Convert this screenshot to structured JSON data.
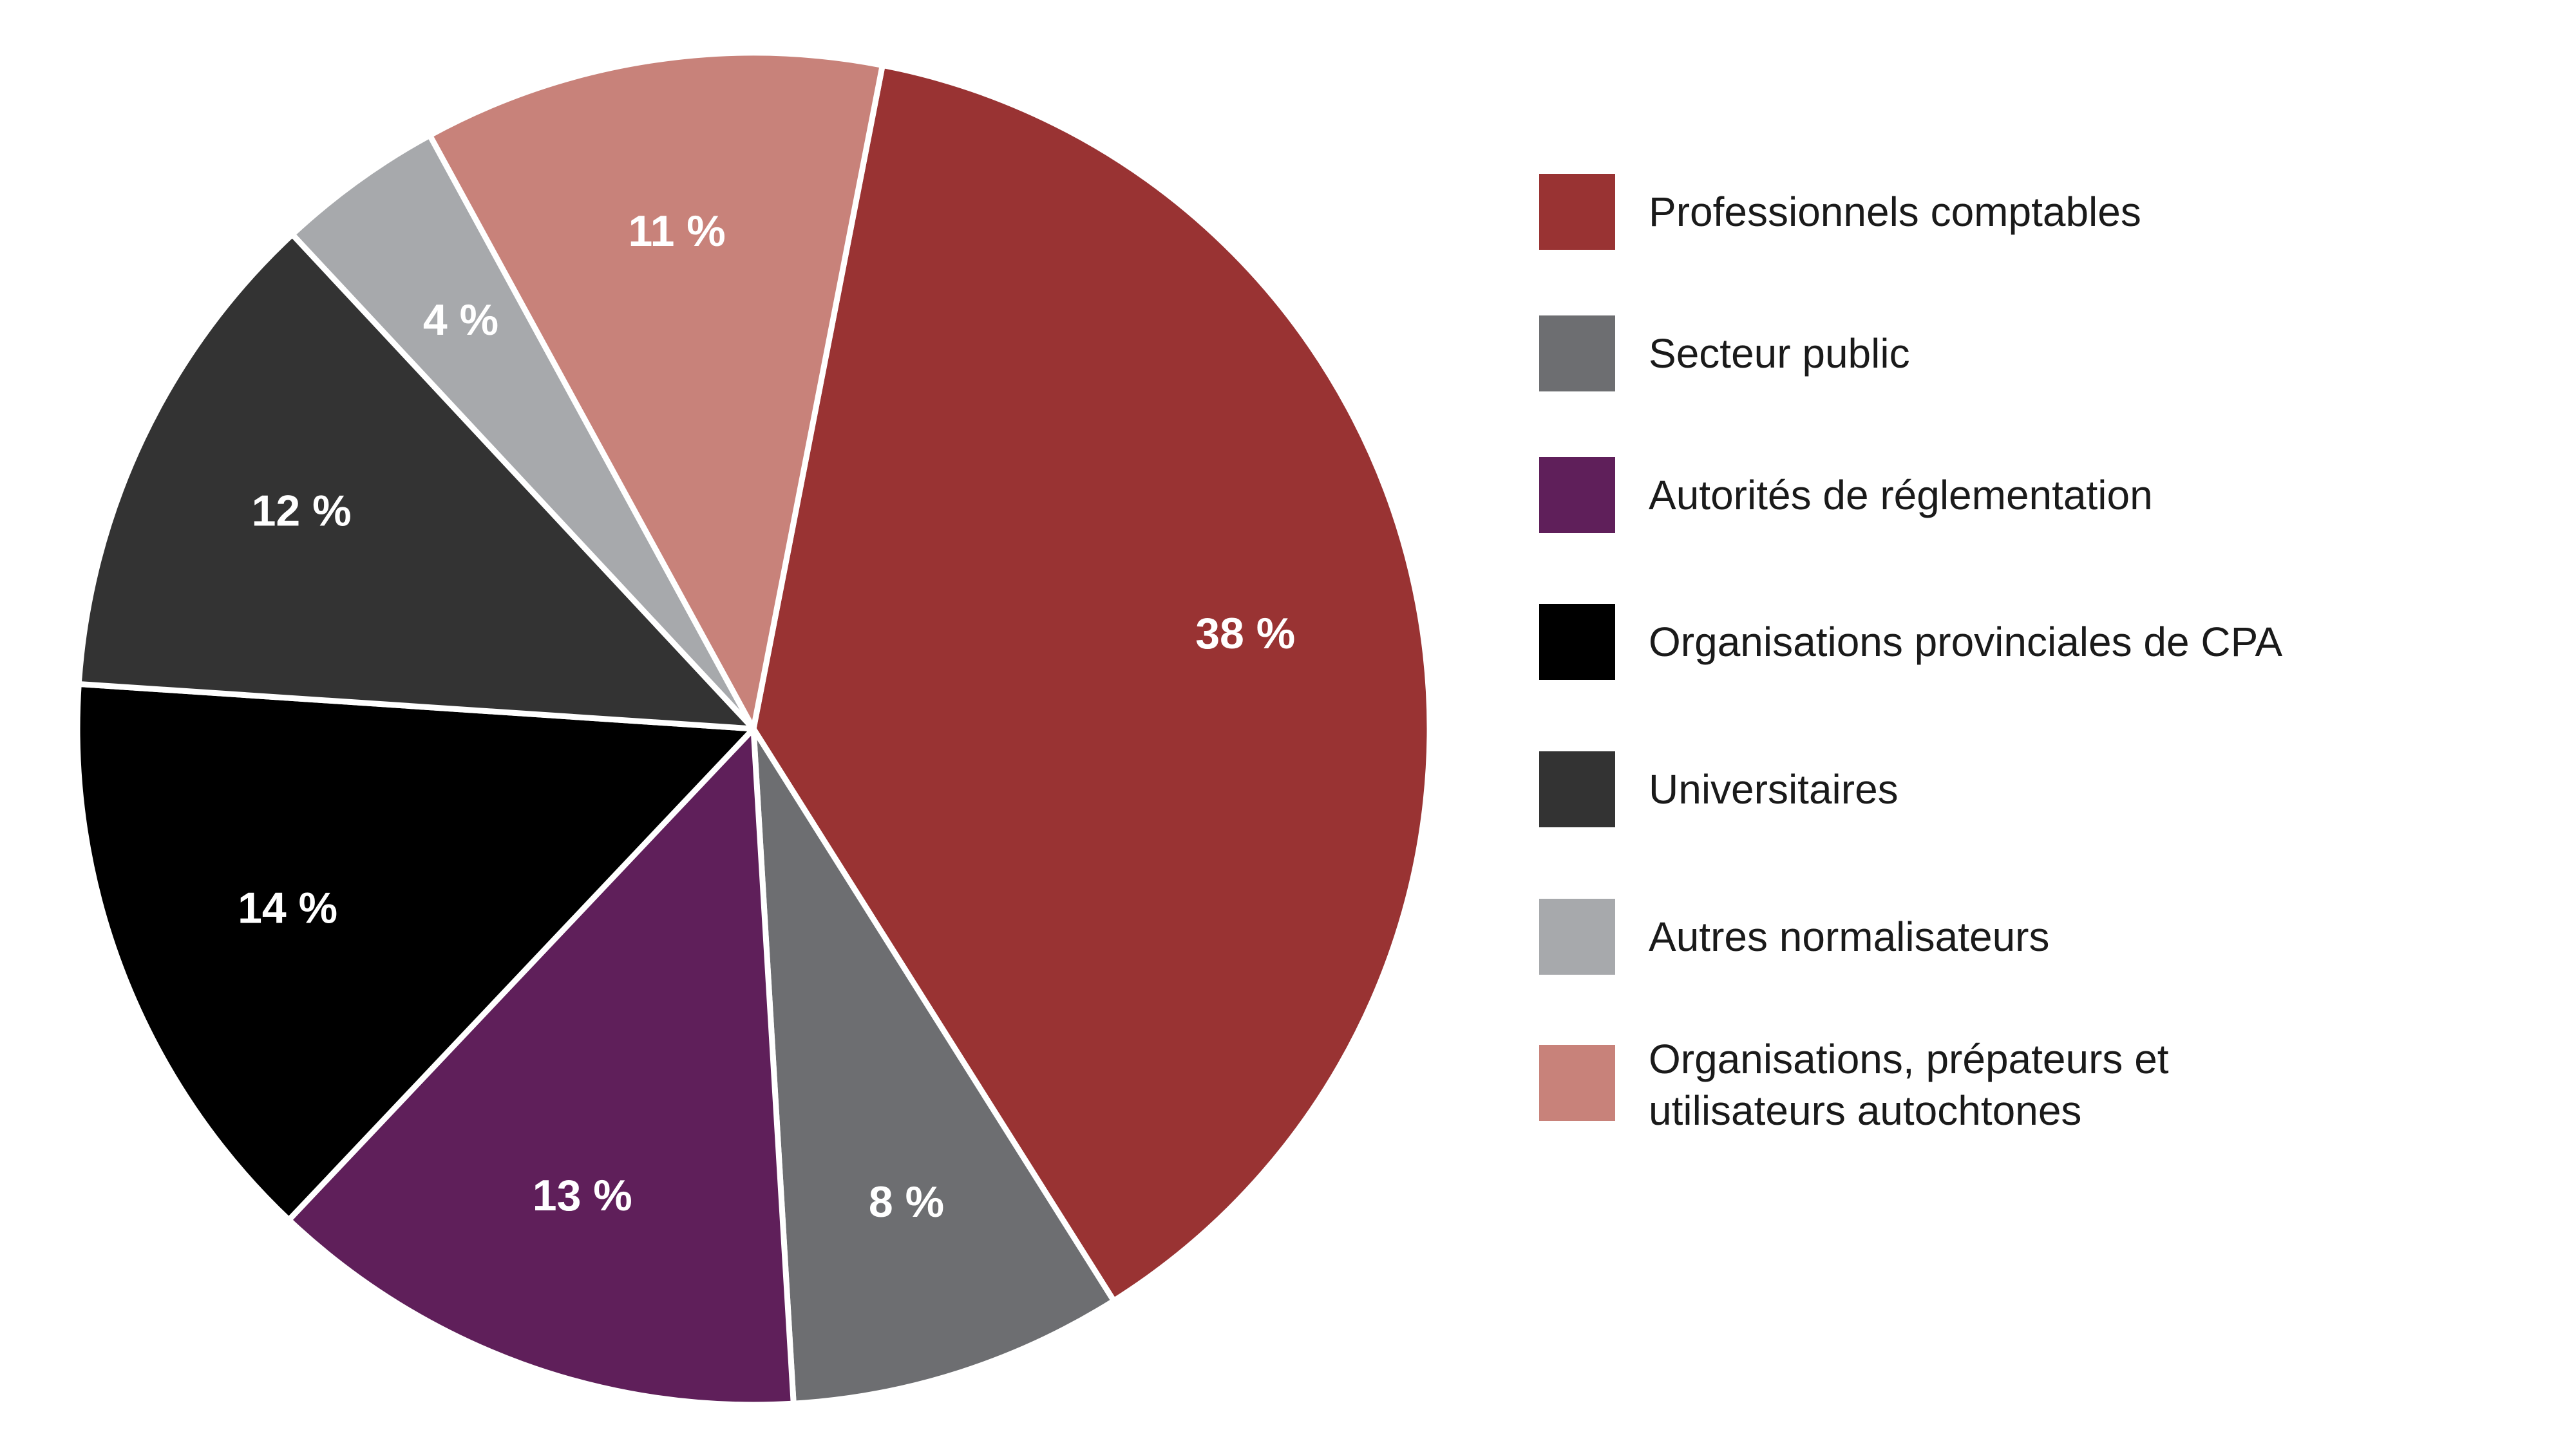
{
  "chart_data": {
    "type": "pie",
    "title": "",
    "slices": [
      {
        "category": "Professionnels comptables",
        "value": 38,
        "label": "38 %",
        "color": "#993333"
      },
      {
        "category": "Secteur public",
        "value": 8,
        "label": "8 %",
        "color": "#6d6e71"
      },
      {
        "category": "Autorités de réglementation",
        "value": 13,
        "label": "13 %",
        "color": "#5f1f5a"
      },
      {
        "category": "Organisations provinciales de CPA",
        "value": 14,
        "label": "14 %",
        "color": "#000000"
      },
      {
        "category": "Universitaires",
        "value": 12,
        "label": "12 %",
        "color": "#333333"
      },
      {
        "category": "Autres normalisateurs",
        "value": 4,
        "label": "4 %",
        "color": "#a7a9ac"
      },
      {
        "category": "Organisations, prépateurs et utilisateurs autochtones",
        "value": 11,
        "label": "11 %",
        "color": "#c8827a"
      }
    ],
    "legend": {
      "placement": "right",
      "items": [
        {
          "label": "Professionnels comptables",
          "color": "#993333"
        },
        {
          "label": "Secteur public",
          "color": "#6d6e71"
        },
        {
          "label": "Autorités de réglementation",
          "color": "#5f1f5a"
        },
        {
          "label": "Organisations provinciales de CPA",
          "color": "#000000"
        },
        {
          "label": "Universitaires",
          "color": "#333333"
        },
        {
          "label": "Autres normalisateurs",
          "color": "#a7a9ac"
        },
        {
          "label": "Organisations, prépateurs et\nutilisateurs autochtones",
          "color": "#c8827a"
        }
      ]
    }
  }
}
